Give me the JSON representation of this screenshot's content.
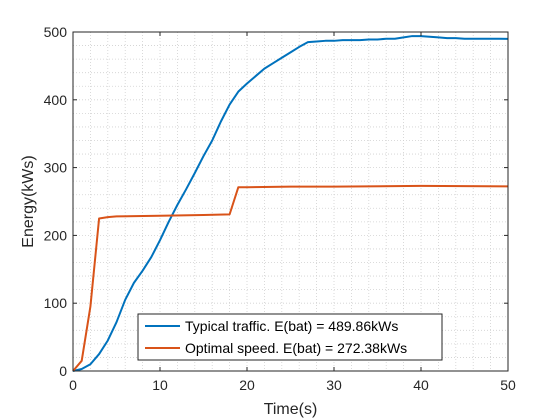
{
  "chart_data": {
    "type": "line",
    "title": "",
    "xlabel": "Time(s)",
    "ylabel": "Energy(kWs)",
    "xlim": [
      0,
      50
    ],
    "ylim": [
      0,
      500
    ],
    "xticks": [
      0,
      10,
      20,
      30,
      40,
      50
    ],
    "yticks": [
      0,
      100,
      200,
      300,
      400,
      500
    ],
    "grid": "major-and-minor-dotted",
    "legend_position": "bottom-center",
    "series": [
      {
        "name": "Typical traffic. E(bat) = 489.86kWs",
        "color": "#0072BD",
        "x": [
          0,
          1,
          2,
          3,
          4,
          5,
          6,
          7,
          8,
          9,
          10,
          11,
          12,
          13,
          14,
          15,
          16,
          17,
          18,
          19,
          20,
          21,
          22,
          23,
          24,
          25,
          26,
          27,
          28,
          29,
          30,
          31,
          32,
          33,
          34,
          35,
          36,
          37,
          38,
          39,
          40,
          41,
          42,
          43,
          44,
          45,
          46,
          47,
          48,
          49,
          50
        ],
        "y": [
          0,
          3,
          10,
          25,
          45,
          72,
          105,
          130,
          148,
          168,
          193,
          220,
          245,
          268,
          292,
          317,
          340,
          368,
          393,
          412,
          424,
          435,
          446,
          454,
          462,
          470,
          478,
          485,
          486,
          487,
          487,
          488,
          488,
          488,
          489,
          489,
          490,
          490,
          492,
          494,
          494,
          493,
          492,
          491,
          491,
          490,
          490,
          490,
          490,
          490,
          489.86
        ]
      },
      {
        "name": "Optimal speed. E(bat) = 272.38kWs",
        "color": "#D95319",
        "x": [
          0,
          1,
          2,
          3,
          4,
          5,
          10,
          15,
          18,
          19,
          20,
          25,
          30,
          40,
          50
        ],
        "y": [
          0,
          15,
          95,
          225,
          227,
          228,
          229,
          230,
          231,
          271,
          271,
          272,
          272,
          273,
          272.38
        ]
      }
    ]
  }
}
